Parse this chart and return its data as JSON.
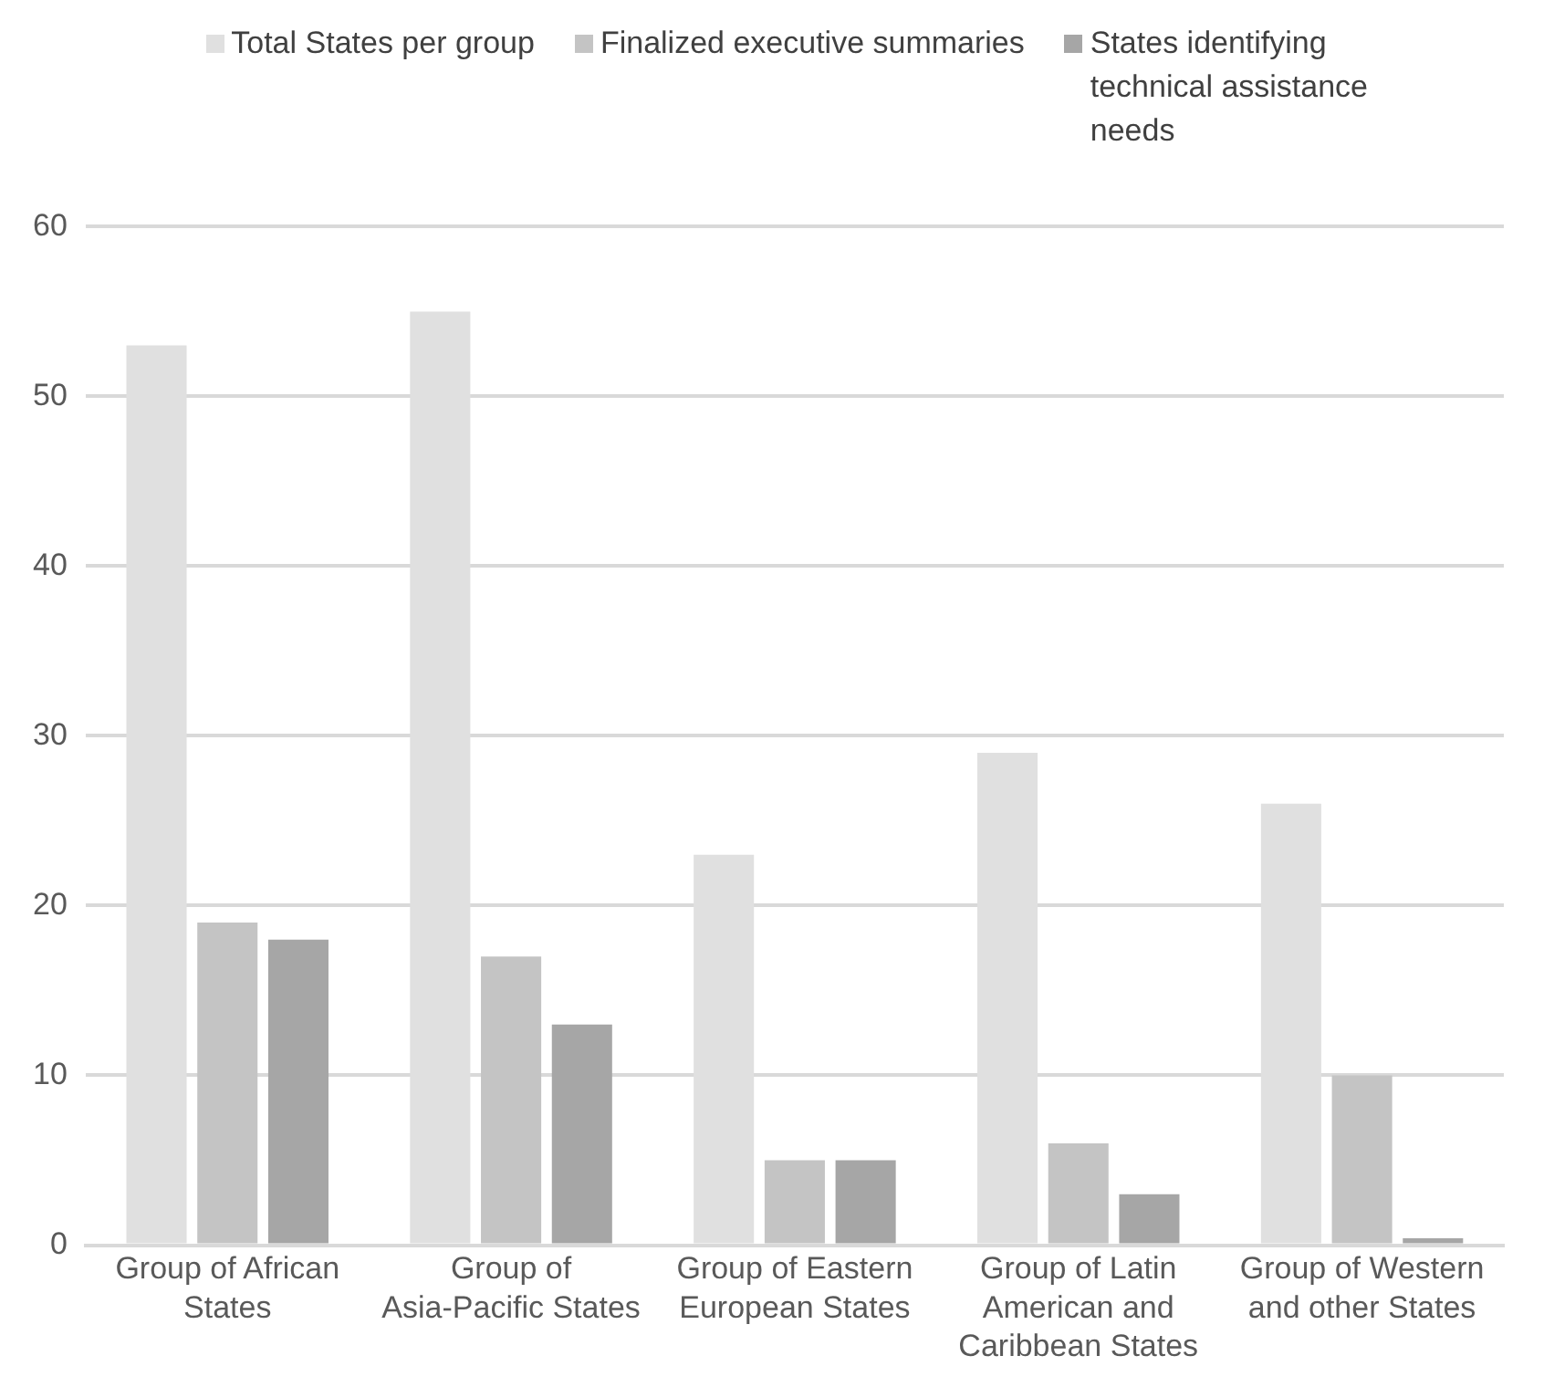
{
  "chart_data": {
    "type": "bar",
    "categories": [
      "Group of African States",
      "Group of Asia-Pacific States",
      "Group of Eastern European States",
      "Group of Latin American and Caribbean States",
      "Group of Western and other States"
    ],
    "series": [
      {
        "name": "Total States per group",
        "color": "#e0e0e0",
        "values": [
          53,
          55,
          23,
          29,
          26
        ]
      },
      {
        "name": "Finalized executive summaries",
        "color": "#c4c4c4",
        "values": [
          19,
          17,
          5,
          6,
          10
        ]
      },
      {
        "name": "States identifying technical assistance needs",
        "color": "#a6a6a6",
        "values": [
          18,
          13,
          5,
          3,
          0.4
        ]
      }
    ],
    "ylim": [
      0,
      60
    ],
    "yticks": [
      0,
      10,
      20,
      30,
      40,
      50,
      60
    ],
    "grid": "y",
    "legend": "top"
  }
}
